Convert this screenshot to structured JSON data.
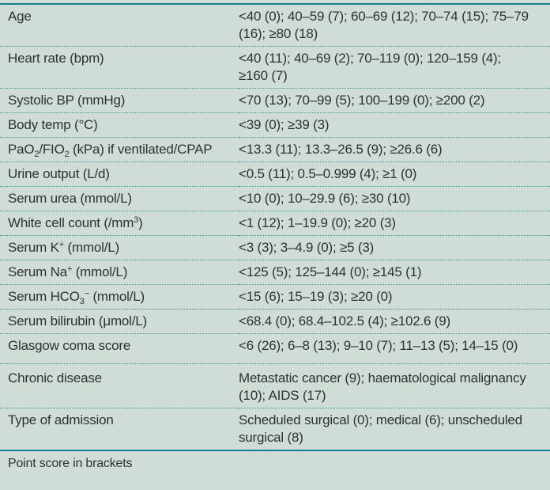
{
  "colors": {
    "background": "#d0ddd7",
    "rule_teal": "#12828a",
    "dotted_separator_teal": "#3a948f",
    "text": "#2e3134"
  },
  "table": {
    "rows": [
      {
        "name": "age",
        "param": [
          {
            "text": "Age"
          }
        ],
        "value": "<40 (0); 40–59 (7); 60–69 (12); 70–74 (15); 75–79 (16); ≥80 (18)"
      },
      {
        "name": "heart-rate",
        "param": [
          {
            "text": "Heart rate (bpm)"
          }
        ],
        "value": "<40 (11); 40–69 (2); 70–119 (0); 120–159 (4); ≥160 (7)"
      },
      {
        "name": "systolic-bp",
        "param": [
          {
            "text": "Systolic BP (mmHg)"
          }
        ],
        "value": "<70 (13); 70–99 (5); 100–199 (0); ≥200 (2)"
      },
      {
        "name": "body-temp",
        "param": [
          {
            "text": "Body temp (°C)"
          }
        ],
        "value": "<39 (0); ≥39 (3)"
      },
      {
        "name": "pao2-fio2",
        "param": [
          {
            "text": "PaO"
          },
          {
            "text": "2",
            "style": "sub"
          },
          {
            "text": "/FIO"
          },
          {
            "text": "2",
            "style": "sub"
          },
          {
            "text": " (kPa) if ventilated/CPAP"
          }
        ],
        "value": "<13.3 (11); 13.3–26.5 (9); ≥26.6 (6)"
      },
      {
        "name": "urine-output",
        "param": [
          {
            "text": "Urine output (L/d)"
          }
        ],
        "value": "<0.5 (11); 0.5–0.999 (4); ≥1 (0)"
      },
      {
        "name": "serum-urea",
        "param": [
          {
            "text": "Serum urea (mmol/L)"
          }
        ],
        "value": "<10 (0); 10–29.9 (6); ≥30 (10)"
      },
      {
        "name": "white-cell-count",
        "param": [
          {
            "text": "White cell count (/mm"
          },
          {
            "text": "3",
            "style": "sup"
          },
          {
            "text": ")"
          }
        ],
        "value": "<1 (12); 1–19.9 (0); ≥20 (3)"
      },
      {
        "name": "serum-k",
        "param": [
          {
            "text": "Serum K"
          },
          {
            "text": "+",
            "style": "sup"
          },
          {
            "text": " (mmol/L)"
          }
        ],
        "value": "<3 (3); 3–4.9 (0); ≥5 (3)"
      },
      {
        "name": "serum-na",
        "param": [
          {
            "text": "Serum Na"
          },
          {
            "text": "+",
            "style": "sup"
          },
          {
            "text": " (mmol/L)"
          }
        ],
        "value": "<125 (5); 125–144 (0); ≥145 (1)"
      },
      {
        "name": "serum-hco3",
        "param": [
          {
            "text": "Serum HCO"
          },
          {
            "text": "3",
            "style": "sub"
          },
          {
            "text": "−",
            "style": "sup"
          },
          {
            "text": " (mmol/L)"
          }
        ],
        "value": "<15 (6); 15–19 (3); ≥20 (0)"
      },
      {
        "name": "serum-bilirubin",
        "param": [
          {
            "text": "Serum bilirubin (μmol/L)"
          }
        ],
        "value": "<68.4 (0); 68.4–102.5 (4); ≥102.6 (9)"
      },
      {
        "name": "glasgow-coma-score",
        "param": [
          {
            "text": "Glasgow coma score"
          }
        ],
        "value": "<6 (26); 6–8 (13); 9–10 (7); 11–13 (5); 14–15 (0)"
      },
      {
        "name": "chronic-disease",
        "param": [
          {
            "text": "Chronic disease"
          }
        ],
        "value": "Metastatic cancer (9); haematological malignancy (10); AIDS (17)"
      },
      {
        "name": "type-of-admission",
        "param": [
          {
            "text": "Type of admission"
          }
        ],
        "value": "Scheduled surgical (0); medical (6); unscheduled surgical (8)"
      }
    ],
    "footer": "Point score in brackets"
  }
}
